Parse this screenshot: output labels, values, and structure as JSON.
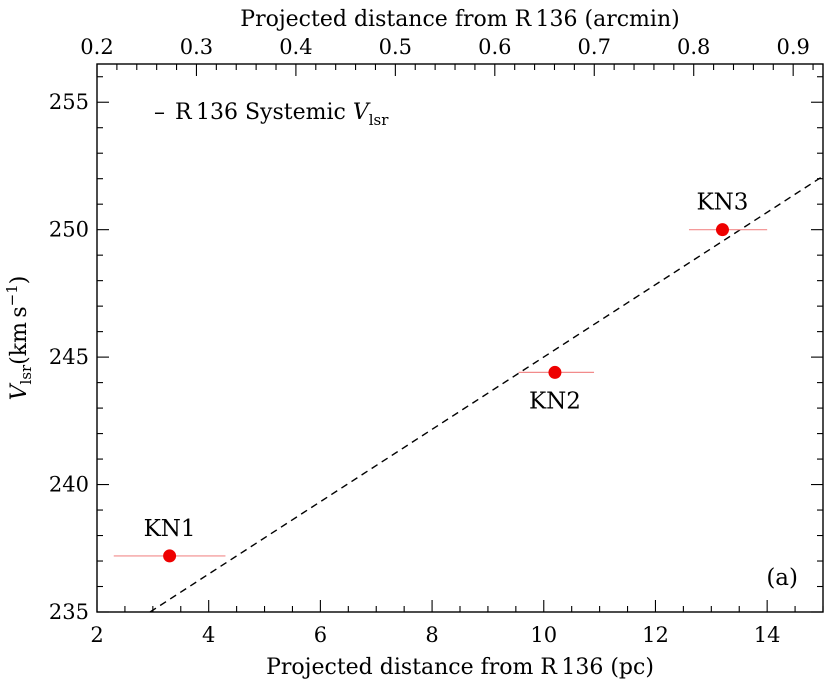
{
  "chart_data": {
    "type": "scatter",
    "xlabel": "Projected distance from R 136 (pc)",
    "top_xlabel": "Projected distance from R 136 (arcmin)",
    "ylabel": {
      "main": "V",
      "sub": "lsr",
      "unit": "(km s",
      "unit_sup": "−1",
      "unit_close": ")"
    },
    "xlim": [
      2,
      15
    ],
    "ylim": [
      235,
      256.5
    ],
    "top_xlim": [
      0.2,
      0.93
    ],
    "x_ticks": [
      2,
      4,
      6,
      8,
      10,
      12,
      14
    ],
    "y_ticks": [
      235,
      240,
      245,
      250,
      255
    ],
    "top_x_ticks": [
      "0.2",
      "0.3",
      "0.4",
      "0.5",
      "0.6",
      "0.7",
      "0.8",
      "0.9"
    ],
    "points": [
      {
        "name": "KN1",
        "x": 3.3,
        "y": 237.2,
        "xerr_low": 2.3,
        "xerr_high": 4.3,
        "label_pos": "above"
      },
      {
        "name": "KN2",
        "x": 10.2,
        "y": 244.4,
        "xerr_low": 9.55,
        "xerr_high": 10.9,
        "label_pos": "below"
      },
      {
        "name": "KN3",
        "x": 13.2,
        "y": 250.0,
        "xerr_low": 12.6,
        "xerr_high": 14.0,
        "label_pos": "above"
      }
    ],
    "fit_line": {
      "x": [
        2.95,
        15.0
      ],
      "y": [
        235.0,
        252.1
      ],
      "style": "dashed"
    },
    "legend": {
      "marker": "–",
      "label": "R 136 Systemic ",
      "label_var": "V",
      "label_sub": "lsr",
      "placement": "top-left"
    },
    "panel_label": "(a)",
    "colors": {
      "points": "#ee0000",
      "errorbars": "#f28b8b",
      "line": "#000000"
    }
  }
}
